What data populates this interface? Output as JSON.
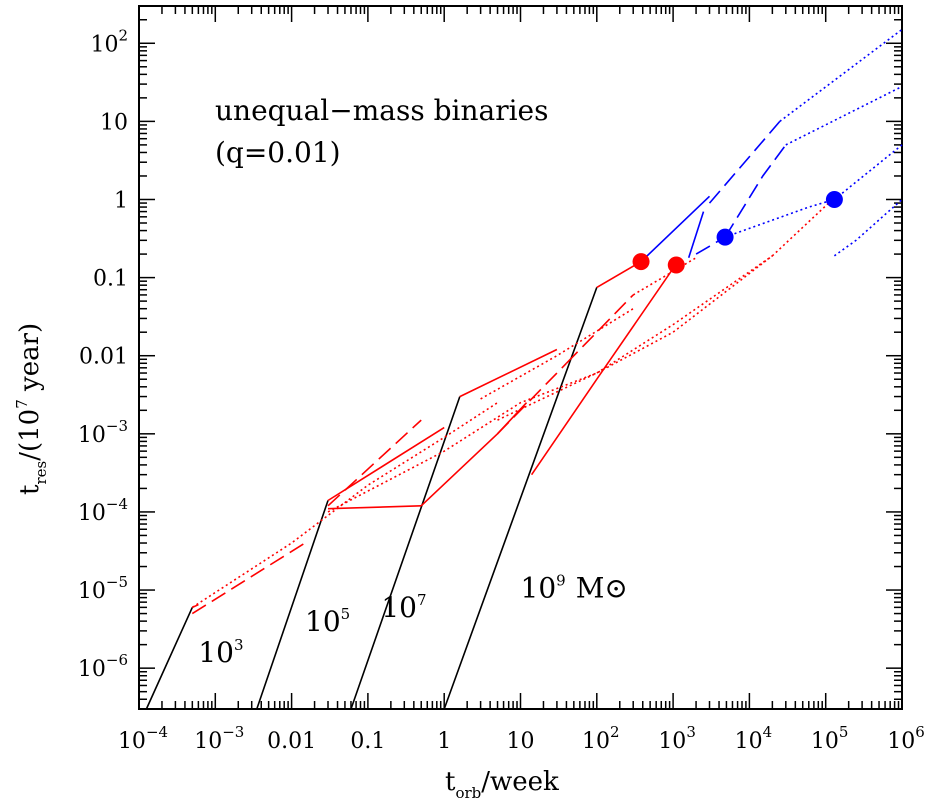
{
  "chart_data": {
    "type": "line",
    "x_scale": "log",
    "y_scale": "log",
    "xlim": [
      0.0001,
      1000000
    ],
    "ylim": [
      3e-07,
      300
    ],
    "xlabel": {
      "main": "t",
      "sub": "orb",
      "rest": "/week"
    },
    "ylabel": {
      "main": "t",
      "sub": "res",
      "rest1": "/(10",
      "sup": "7",
      "rest2": " year)"
    },
    "annotation": {
      "line1": "unequal−mass binaries",
      "line2": "(q=0.01)"
    },
    "mass_labels": [
      {
        "mantissa": "10",
        "exp": "3",
        "unit": "",
        "x": 0.0006,
        "y": 1.2e-06
      },
      {
        "mantissa": "10",
        "exp": "5",
        "unit": "",
        "x": 0.015,
        "y": 3e-06
      },
      {
        "mantissa": "10",
        "exp": "7",
        "unit": "",
        "x": 0.15,
        "y": 4.5e-06
      },
      {
        "mantissa": "10",
        "exp": "9",
        "unit": "M⊙",
        "x": 10,
        "y": 8e-06
      }
    ],
    "x_ticks": [
      {
        "value": 0.0001,
        "mantissa": "10",
        "exp": "−4"
      },
      {
        "value": 0.001,
        "mantissa": "10",
        "exp": "−3"
      },
      {
        "value": 0.01,
        "mantissa": "0.01",
        "exp": ""
      },
      {
        "value": 0.1,
        "mantissa": "0.1",
        "exp": ""
      },
      {
        "value": 1,
        "mantissa": "1",
        "exp": ""
      },
      {
        "value": 10,
        "mantissa": "10",
        "exp": ""
      },
      {
        "value": 100,
        "mantissa": "10",
        "exp": "2"
      },
      {
        "value": 1000,
        "mantissa": "10",
        "exp": "3"
      },
      {
        "value": 10000,
        "mantissa": "10",
        "exp": "4"
      },
      {
        "value": 100000,
        "mantissa": "10",
        "exp": "5"
      },
      {
        "value": 1000000,
        "mantissa": "10",
        "exp": "6"
      }
    ],
    "y_ticks": [
      {
        "value": 1e-06,
        "mantissa": "10",
        "exp": "−6"
      },
      {
        "value": 1e-05,
        "mantissa": "10",
        "exp": "−5"
      },
      {
        "value": 0.0001,
        "mantissa": "10",
        "exp": "−4"
      },
      {
        "value": 0.001,
        "mantissa": "10",
        "exp": "−3"
      },
      {
        "value": 0.01,
        "mantissa": "0.01",
        "exp": ""
      },
      {
        "value": 0.1,
        "mantissa": "0.1",
        "exp": ""
      },
      {
        "value": 1,
        "mantissa": "1",
        "exp": ""
      },
      {
        "value": 10,
        "mantissa": "10",
        "exp": ""
      },
      {
        "value": 100,
        "mantissa": "10",
        "exp": "2"
      }
    ],
    "colors": {
      "black": "#000000",
      "red": "#ff0000",
      "blue": "#0000ff"
    },
    "series": [
      {
        "color": "black",
        "dash": "solid",
        "points": [
          [
            0.000125,
            3e-07
          ],
          [
            0.0005,
            6e-06
          ]
        ]
      },
      {
        "color": "black",
        "dash": "solid",
        "points": [
          [
            0.0035,
            3e-07
          ],
          [
            0.03,
            0.00014
          ]
        ]
      },
      {
        "color": "black",
        "dash": "solid",
        "points": [
          [
            0.06,
            3e-07
          ],
          [
            1.6,
            0.003
          ]
        ]
      },
      {
        "color": "black",
        "dash": "solid",
        "points": [
          [
            1,
            3e-07
          ],
          [
            100,
            0.075
          ]
        ]
      },
      {
        "color": "red",
        "dash": "solid",
        "points": [
          [
            0.0005,
            6e-06
          ],
          [
            0.0006,
            6.5e-06
          ]
        ]
      },
      {
        "color": "red",
        "dash": "dashed",
        "points": [
          [
            0.0005,
            5e-06
          ],
          [
            0.015,
            4e-05
          ]
        ]
      },
      {
        "color": "red",
        "dash": "dotted",
        "points": [
          [
            0.0005,
            6e-06
          ],
          [
            0.01,
            4e-05
          ],
          [
            0.1,
            0.00022
          ],
          [
            1,
            0.0009
          ],
          [
            5,
            0.0025
          ]
        ]
      },
      {
        "color": "red",
        "dash": "solid",
        "points": [
          [
            0.03,
            0.00014
          ],
          [
            1,
            0.0012
          ]
        ]
      },
      {
        "color": "red",
        "dash": "solid",
        "points": [
          [
            0.03,
            0.00011
          ],
          [
            0.5,
            0.00012
          ]
        ]
      },
      {
        "color": "red",
        "dash": "dashed",
        "points": [
          [
            0.03,
            0.00012
          ],
          [
            0.5,
            0.0015
          ]
        ]
      },
      {
        "color": "red",
        "dash": "dotted",
        "points": [
          [
            0.03,
            0.0001
          ],
          [
            1,
            0.0006
          ],
          [
            10,
            0.0025
          ],
          [
            100,
            0.006
          ],
          [
            1000,
            0.02
          ],
          [
            20000,
            0.19
          ],
          [
            150000,
            1.2
          ]
        ]
      },
      {
        "color": "red",
        "dash": "solid",
        "points": [
          [
            1.6,
            0.003
          ],
          [
            30,
            0.012
          ]
        ]
      },
      {
        "color": "red",
        "dash": "solid",
        "points": [
          [
            0.5,
            0.00012
          ],
          [
            5,
            0.001
          ],
          [
            12,
            0.0025
          ]
        ]
      },
      {
        "color": "red",
        "dash": "dashed",
        "points": [
          [
            5,
            0.001
          ],
          [
            40,
            0.008
          ]
        ]
      },
      {
        "color": "red",
        "dash": "dotted",
        "points": [
          [
            3,
            0.0028
          ],
          [
            30,
            0.01
          ],
          [
            300,
            0.04
          ]
        ]
      },
      {
        "color": "red",
        "dash": "dotted",
        "points": [
          [
            5,
            0.0015
          ],
          [
            100,
            0.006
          ],
          [
            1000,
            0.025
          ],
          [
            20000,
            0.19
          ]
        ]
      },
      {
        "color": "red",
        "dash": "solid",
        "points": [
          [
            100,
            0.075
          ],
          [
            380,
            0.16
          ]
        ]
      },
      {
        "color": "red",
        "dash": "solid",
        "points": [
          [
            14,
            0.0003
          ],
          [
            100,
            0.005
          ],
          [
            1100,
            0.15
          ]
        ]
      },
      {
        "color": "red",
        "dash": "dashed",
        "points": [
          [
            40,
            0.008
          ],
          [
            300,
            0.06
          ]
        ]
      },
      {
        "color": "red",
        "dash": "dotted",
        "points": [
          [
            300,
            0.06
          ],
          [
            1000,
            0.12
          ],
          [
            2000,
            0.18
          ]
        ]
      },
      {
        "color": "blue",
        "dash": "solid",
        "points": [
          [
            380,
            0.16
          ],
          [
            3000,
            1.1
          ]
        ]
      },
      {
        "color": "blue",
        "dash": "solid",
        "points": [
          [
            1600,
            0.18
          ],
          [
            2500,
            0.7
          ]
        ]
      },
      {
        "color": "blue",
        "dash": "dashed",
        "points": [
          [
            3000,
            0.9
          ],
          [
            25000,
            10
          ]
        ]
      },
      {
        "color": "blue",
        "dash": "dotted",
        "points": [
          [
            25000,
            10
          ],
          [
            1000000,
            150
          ]
        ]
      },
      {
        "color": "blue",
        "dash": "dashed",
        "points": [
          [
            2000,
            0.2
          ],
          [
            4800,
            0.33
          ]
        ]
      },
      {
        "color": "blue",
        "dash": "dashed",
        "points": [
          [
            4800,
            0.33
          ],
          [
            15000,
            2
          ],
          [
            30000,
            5
          ]
        ]
      },
      {
        "color": "blue",
        "dash": "dotted",
        "points": [
          [
            30000,
            5
          ],
          [
            1000000,
            28
          ]
        ]
      },
      {
        "color": "blue",
        "dash": "dotted",
        "points": [
          [
            4800,
            0.33
          ],
          [
            60000,
            0.8
          ],
          [
            130000,
            1.0
          ]
        ]
      },
      {
        "color": "blue",
        "dash": "dotted",
        "points": [
          [
            130000,
            1.0
          ],
          [
            1000000,
            5
          ]
        ]
      },
      {
        "color": "blue",
        "dash": "dotted",
        "points": [
          [
            130000,
            0.19
          ],
          [
            250000,
            0.3
          ],
          [
            1000000,
            1.0
          ]
        ]
      }
    ],
    "markers": [
      {
        "color": "red",
        "x": 380,
        "y": 0.16
      },
      {
        "color": "red",
        "x": 1100,
        "y": 0.145
      },
      {
        "color": "blue",
        "x": 4800,
        "y": 0.33
      },
      {
        "color": "blue",
        "x": 130000,
        "y": 1.0
      }
    ]
  }
}
